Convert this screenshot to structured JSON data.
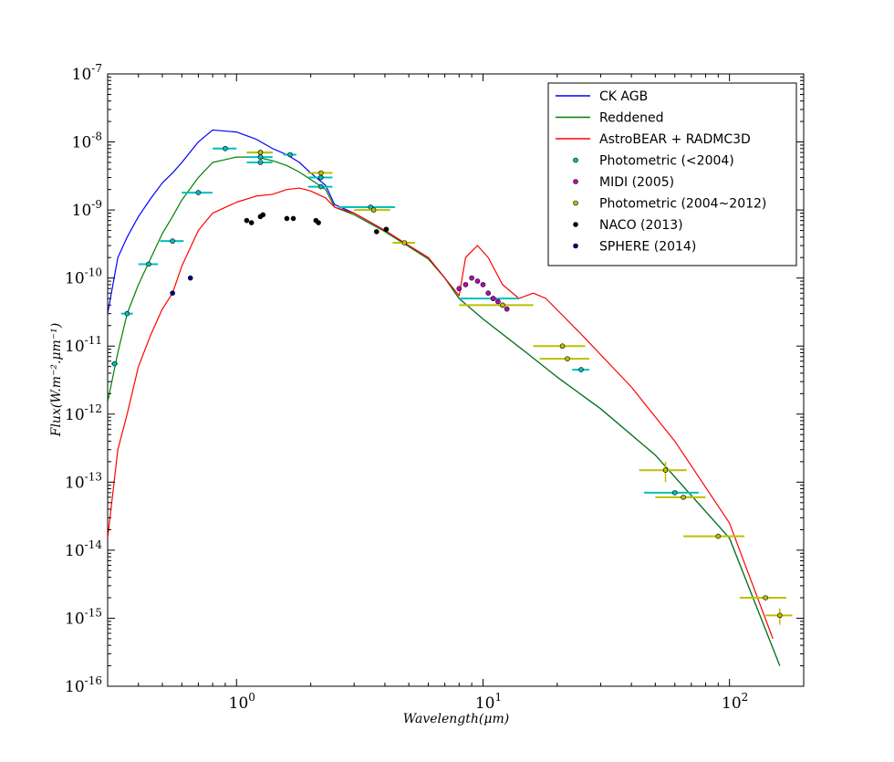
{
  "chart_data": {
    "type": "line",
    "title": "",
    "xlabel": "Wavelength(μm)",
    "ylabel": "Flux(W.m⁻².μm⁻¹)",
    "xscale": "log",
    "yscale": "log",
    "xlim": [
      0.3,
      200
    ],
    "ylim": [
      1e-16,
      1e-07
    ],
    "x_tick_labels": [
      {
        "value": 1,
        "base": "10",
        "exp": "0"
      },
      {
        "value": 10,
        "base": "10",
        "exp": "1"
      },
      {
        "value": 100,
        "base": "10",
        "exp": "2"
      }
    ],
    "y_tick_labels": [
      {
        "value": 1e-07,
        "base": "10",
        "exp": "-7"
      },
      {
        "value": 1e-08,
        "base": "10",
        "exp": "-8"
      },
      {
        "value": 1e-09,
        "base": "10",
        "exp": "-9"
      },
      {
        "value": 1e-10,
        "base": "10",
        "exp": "-10"
      },
      {
        "value": 1e-11,
        "base": "10",
        "exp": "-11"
      },
      {
        "value": 1e-12,
        "base": "10",
        "exp": "-12"
      },
      {
        "value": 1e-13,
        "base": "10",
        "exp": "-13"
      },
      {
        "value": 1e-14,
        "base": "10",
        "exp": "-14"
      },
      {
        "value": 1e-15,
        "base": "10",
        "exp": "-15"
      },
      {
        "value": 1e-16,
        "base": "10",
        "exp": "-16"
      }
    ],
    "legend_position": "top-right",
    "series": [
      {
        "name": "CK AGB",
        "kind": "line",
        "color": "#0000ff",
        "points": [
          [
            0.3,
            3e-11
          ],
          [
            0.33,
            2e-10
          ],
          [
            0.36,
            4e-10
          ],
          [
            0.4,
            8e-10
          ],
          [
            0.45,
            1.5e-09
          ],
          [
            0.5,
            2.5e-09
          ],
          [
            0.55,
            3.5e-09
          ],
          [
            0.6,
            5e-09
          ],
          [
            0.7,
            1e-08
          ],
          [
            0.8,
            1.5e-08
          ],
          [
            1.0,
            1.4e-08
          ],
          [
            1.2,
            1.1e-08
          ],
          [
            1.4,
            8e-09
          ],
          [
            1.6,
            6.5e-09
          ],
          [
            1.8,
            5e-09
          ],
          [
            2.0,
            3.5e-09
          ],
          [
            2.3,
            2.3e-09
          ],
          [
            2.5,
            1.2e-09
          ],
          [
            3.0,
            9e-10
          ],
          [
            4.0,
            5e-10
          ],
          [
            5.0,
            3e-10
          ],
          [
            6.0,
            2e-10
          ],
          [
            7.0,
            1e-10
          ],
          [
            8.0,
            5e-11
          ],
          [
            10.0,
            2.5e-11
          ],
          [
            15.0,
            8e-12
          ],
          [
            20.0,
            3.5e-12
          ],
          [
            30.0,
            1.2e-12
          ],
          [
            50.0,
            2.5e-13
          ],
          [
            100.0,
            1.5e-14
          ],
          [
            160.0,
            2e-16
          ]
        ]
      },
      {
        "name": "Reddened",
        "kind": "line",
        "color": "#008000",
        "points": [
          [
            0.3,
            1.5e-12
          ],
          [
            0.33,
            8e-12
          ],
          [
            0.36,
            3e-11
          ],
          [
            0.4,
            8e-11
          ],
          [
            0.45,
            2e-10
          ],
          [
            0.5,
            4.5e-10
          ],
          [
            0.55,
            8e-10
          ],
          [
            0.6,
            1.4e-09
          ],
          [
            0.7,
            3e-09
          ],
          [
            0.8,
            5e-09
          ],
          [
            1.0,
            6e-09
          ],
          [
            1.2,
            6e-09
          ],
          [
            1.4,
            5.3e-09
          ],
          [
            1.6,
            4.5e-09
          ],
          [
            1.8,
            3.6e-09
          ],
          [
            2.0,
            2.8e-09
          ],
          [
            2.3,
            2e-09
          ],
          [
            2.5,
            1.1e-09
          ],
          [
            3.0,
            8.5e-10
          ],
          [
            4.0,
            4.8e-10
          ],
          [
            5.0,
            2.9e-10
          ],
          [
            6.0,
            1.9e-10
          ],
          [
            7.0,
            1e-10
          ],
          [
            8.0,
            5e-11
          ],
          [
            10.0,
            2.5e-11
          ],
          [
            15.0,
            8e-12
          ],
          [
            20.0,
            3.5e-12
          ],
          [
            30.0,
            1.2e-12
          ],
          [
            50.0,
            2.5e-13
          ],
          [
            100.0,
            1.5e-14
          ],
          [
            160.0,
            2e-16
          ]
        ]
      },
      {
        "name": "AstroBEAR + RADMC3D",
        "kind": "line",
        "color": "#ff0000",
        "points": [
          [
            0.3,
            1.5e-14
          ],
          [
            0.33,
            3e-13
          ],
          [
            0.36,
            1e-12
          ],
          [
            0.4,
            5e-12
          ],
          [
            0.45,
            1.5e-11
          ],
          [
            0.5,
            3.5e-11
          ],
          [
            0.55,
            6e-11
          ],
          [
            0.6,
            1.5e-10
          ],
          [
            0.7,
            5e-10
          ],
          [
            0.8,
            9e-10
          ],
          [
            1.0,
            1.3e-09
          ],
          [
            1.2,
            1.6e-09
          ],
          [
            1.4,
            1.7e-09
          ],
          [
            1.6,
            2e-09
          ],
          [
            1.8,
            2.1e-09
          ],
          [
            2.0,
            1.9e-09
          ],
          [
            2.3,
            1.5e-09
          ],
          [
            2.5,
            1.1e-09
          ],
          [
            3.0,
            9e-10
          ],
          [
            4.0,
            5e-10
          ],
          [
            5.0,
            3e-10
          ],
          [
            6.0,
            2e-10
          ],
          [
            7.0,
            1e-10
          ],
          [
            8.0,
            5.5e-11
          ],
          [
            8.5,
            2e-10
          ],
          [
            9.5,
            3e-10
          ],
          [
            10.5,
            2e-10
          ],
          [
            12.0,
            8e-11
          ],
          [
            14.0,
            5e-11
          ],
          [
            16.0,
            6e-11
          ],
          [
            18.0,
            5e-11
          ],
          [
            25.0,
            1.5e-11
          ],
          [
            40.0,
            2.5e-12
          ],
          [
            60.0,
            4e-13
          ],
          [
            100.0,
            2.5e-14
          ],
          [
            150.0,
            5e-16
          ]
        ]
      },
      {
        "name": "Photometric (<2004)",
        "kind": "marker",
        "color": "#00bfbf",
        "points": [
          [
            0.32,
            5.5e-12,
            0.01,
            0
          ],
          [
            0.36,
            3e-11,
            0.02,
            0
          ],
          [
            0.44,
            1.6e-10,
            0.04,
            0
          ],
          [
            0.55,
            3.5e-10,
            0.06,
            0
          ],
          [
            0.7,
            1.8e-09,
            0.1,
            0
          ],
          [
            0.9,
            8e-09,
            0.1,
            0
          ],
          [
            1.25,
            7e-09,
            0.15,
            0
          ],
          [
            1.25,
            6e-09,
            0.15,
            0
          ],
          [
            1.25,
            5e-09,
            0.15,
            0
          ],
          [
            1.65,
            6.5e-09,
            0.1,
            0
          ],
          [
            2.2,
            3e-09,
            0.25,
            0
          ],
          [
            2.2,
            2.2e-09,
            0.25,
            0
          ],
          [
            3.5,
            1.1e-09,
            0.9,
            0
          ],
          [
            11.0,
            5e-11,
            3.0,
            0
          ],
          [
            25.0,
            4.5e-12,
            2.0,
            0
          ],
          [
            60.0,
            7e-14,
            15.0,
            0
          ]
        ]
      },
      {
        "name": "MIDI (2005)",
        "kind": "marker",
        "color": "#bf00bf",
        "points": [
          [
            8.0,
            7e-11
          ],
          [
            8.5,
            8e-11
          ],
          [
            9.0,
            1e-10
          ],
          [
            9.5,
            9e-11
          ],
          [
            10.0,
            8e-11
          ],
          [
            10.5,
            6e-11
          ],
          [
            11.0,
            5e-11
          ],
          [
            11.5,
            4.5e-11
          ],
          [
            12.0,
            4e-11
          ],
          [
            12.5,
            3.5e-11
          ]
        ]
      },
      {
        "name": "Photometric (2004~2012)",
        "kind": "marker",
        "color": "#bfbf00",
        "points": [
          [
            1.25,
            7e-09,
            0.15,
            0
          ],
          [
            2.2,
            3.5e-09,
            0.25,
            0
          ],
          [
            3.6,
            1e-09,
            0.6,
            0
          ],
          [
            4.8,
            3.3e-10,
            0.5,
            0
          ],
          [
            12.0,
            4e-11,
            4.0,
            0
          ],
          [
            21.0,
            1e-11,
            5.0,
            0
          ],
          [
            22.0,
            6.5e-12,
            5.0,
            0
          ],
          [
            55.0,
            1.5e-13,
            12.0,
            5e-14
          ],
          [
            65.0,
            6e-14,
            15.0,
            0
          ],
          [
            90.0,
            1.6e-14,
            25.0,
            0
          ],
          [
            140.0,
            2e-15,
            30.0,
            0
          ],
          [
            160.0,
            1.1e-15,
            20.0,
            3e-16
          ]
        ]
      },
      {
        "name": "NACO (2013)",
        "kind": "marker",
        "color": "#000000",
        "points": [
          [
            1.1,
            7e-10
          ],
          [
            1.15,
            6.5e-10
          ],
          [
            1.25,
            8e-10
          ],
          [
            1.28,
            8.5e-10
          ],
          [
            1.6,
            7.5e-10
          ],
          [
            1.7,
            7.5e-10
          ],
          [
            2.1,
            7e-10
          ],
          [
            2.15,
            6.5e-10
          ],
          [
            3.7,
            4.8e-10
          ],
          [
            4.05,
            5.2e-10
          ]
        ]
      },
      {
        "name": "SPHERE (2014)",
        "kind": "marker",
        "color": "#00008b",
        "points": [
          [
            0.55,
            6e-11
          ],
          [
            0.65,
            1e-10
          ]
        ]
      }
    ]
  }
}
